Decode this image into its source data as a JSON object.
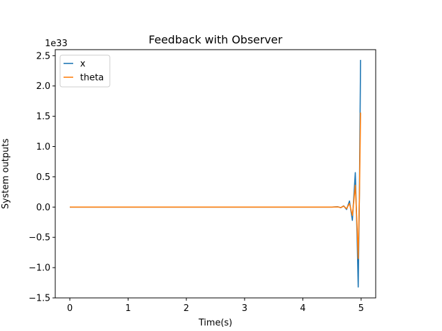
{
  "chart_data": {
    "type": "line",
    "title": "Feedback with Observer",
    "xlabel": "Time(s)",
    "ylabel": "System outputs",
    "offset_text": "1e33",
    "xlim": [
      -0.25,
      5.25
    ],
    "ylim": [
      -1.5,
      2.6
    ],
    "xticks": [
      0,
      1,
      2,
      3,
      4,
      5
    ],
    "xtick_labels": [
      "0",
      "1",
      "2",
      "3",
      "4",
      "5"
    ],
    "yticks": [
      -1.5,
      -1.0,
      -0.5,
      0.0,
      0.5,
      1.0,
      1.5,
      2.0,
      2.5
    ],
    "ytick_labels": [
      "−1.5",
      "−1.0",
      "−0.5",
      "0.0",
      "0.5",
      "1.0",
      "1.5",
      "2.0",
      "2.5"
    ],
    "grid": false,
    "legend": "upper-left",
    "series": [
      {
        "name": "x",
        "color": "#1f77b4",
        "x": [
          0,
          1,
          2,
          3,
          4,
          4.5,
          4.6,
          4.65,
          4.7,
          4.75,
          4.8,
          4.85,
          4.9,
          4.93,
          4.95,
          4.97,
          4.99
        ],
        "y": [
          0,
          0,
          0,
          0,
          0,
          0,
          0.005,
          -0.01,
          0.02,
          -0.04,
          0.1,
          -0.22,
          0.57,
          -0.45,
          -1.32,
          0.2,
          2.43
        ]
      },
      {
        "name": "theta",
        "color": "#ff7f0e",
        "x": [
          0,
          1,
          2,
          3,
          4,
          4.5,
          4.6,
          4.65,
          4.7,
          4.75,
          4.8,
          4.85,
          4.9,
          4.93,
          4.95,
          4.97,
          4.99
        ],
        "y": [
          0,
          0,
          0,
          0,
          0,
          0,
          0.003,
          -0.008,
          0.015,
          -0.025,
          0.06,
          -0.14,
          0.36,
          -0.3,
          -0.85,
          0.15,
          1.56
        ]
      }
    ]
  }
}
